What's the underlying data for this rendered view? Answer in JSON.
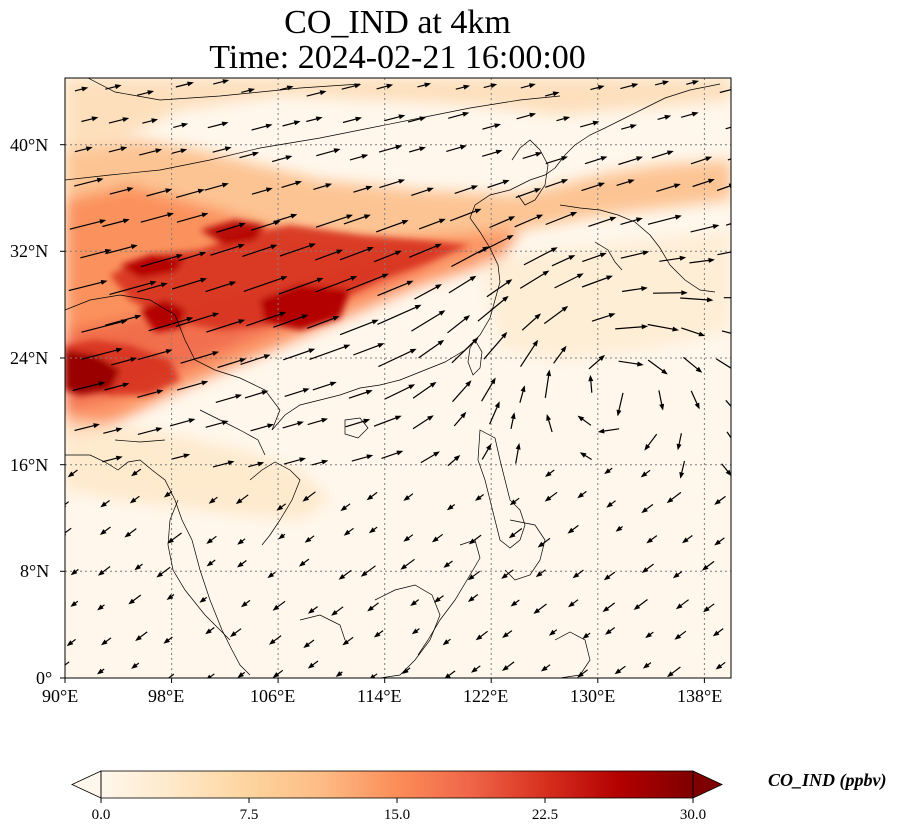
{
  "title": {
    "line1": "CO_IND at 4km",
    "line2": "Time: 2024-02-21 16:00:00"
  },
  "axes": {
    "lon_ticks": [
      "90°E",
      "98°E",
      "106°E",
      "114°E",
      "122°E",
      "130°E",
      "138°E"
    ],
    "lat_ticks": [
      "0°",
      "8°N",
      "16°N",
      "24°N",
      "32°N",
      "40°N"
    ],
    "lon_range": [
      90,
      140
    ],
    "lat_range": [
      0,
      45
    ]
  },
  "colorbar": {
    "label": "CO_IND (ppbv)",
    "ticks": [
      "0.0",
      "7.5",
      "15.0",
      "22.5",
      "30.0"
    ],
    "range": [
      0,
      30
    ],
    "colormap": "OrRd",
    "colors": [
      "#fff7ec",
      "#fee8c8",
      "#fdd49e",
      "#fdbb84",
      "#fc8d59",
      "#ef6548",
      "#d7301f",
      "#b30000",
      "#7f0000"
    ],
    "extend": "both"
  },
  "map": {
    "land_outline_color": "#000000",
    "gridline_color": "#7f7f7f",
    "gridline_style": "dotted",
    "vector_color": "#000000"
  }
}
